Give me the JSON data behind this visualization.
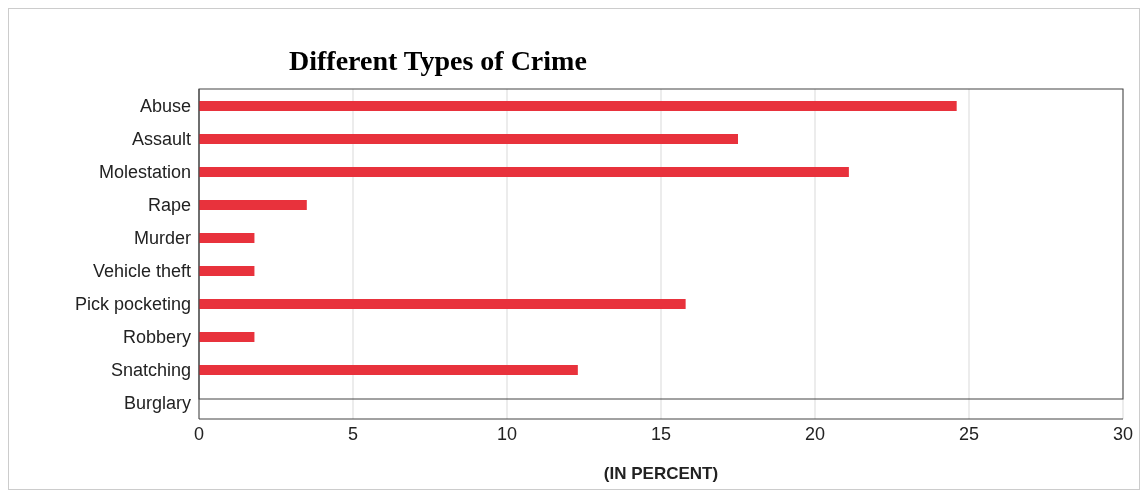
{
  "chart_data": {
    "type": "bar",
    "orientation": "horizontal",
    "title": "Different Types of Crime",
    "xlabel": "(IN PERCENT)",
    "categories": [
      "Abuse",
      "Assault",
      "Molestation",
      "Rape",
      "Murder",
      "Vehicle   theft",
      "Pick pocketing",
      "Robbery",
      "Snatching",
      "Burglary"
    ],
    "values": [
      24.6,
      17.5,
      21.1,
      3.5,
      1.8,
      1.8,
      15.8,
      1.8,
      12.3,
      0
    ],
    "color": "#e8323c",
    "xlim": [
      0,
      30
    ],
    "xticks": [
      0,
      5,
      10,
      15,
      20,
      25,
      30
    ],
    "grid": "x",
    "legend": false
  }
}
